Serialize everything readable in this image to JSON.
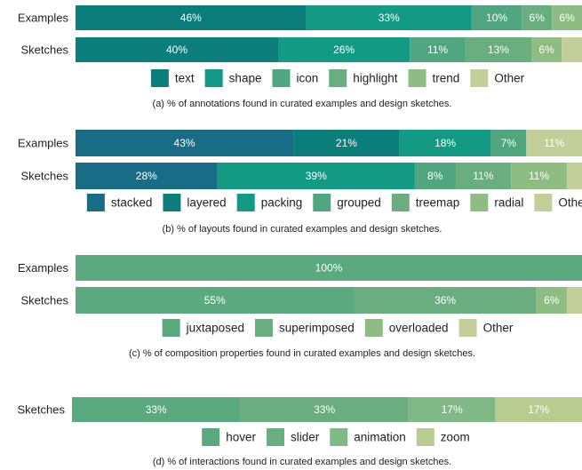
{
  "chart_data": [
    {
      "type": "bar",
      "orientation": "horizontal",
      "stacked": true,
      "title": "(a) % of annotations found in curated examples and design sketches.",
      "categories": [
        "Examples",
        "Sketches"
      ],
      "series": [
        {
          "name": "text",
          "color": "#0b7d7b",
          "values": [
            46,
            40
          ],
          "value_labels": [
            "46%",
            "40%"
          ]
        },
        {
          "name": "shape",
          "color": "#139a84",
          "values": [
            33,
            26
          ],
          "value_labels": [
            "33%",
            "26%"
          ]
        },
        {
          "name": "icon",
          "color": "#4fa67f",
          "values": [
            10,
            11
          ],
          "value_labels": [
            "10%",
            "11%"
          ]
        },
        {
          "name": "highlight",
          "color": "#6aae7f",
          "values": [
            6,
            13
          ],
          "value_labels": [
            "6%",
            "13%"
          ]
        },
        {
          "name": "trend",
          "color": "#8dbd82",
          "values": [
            6,
            6
          ],
          "value_labels": [
            "6%",
            "6%"
          ]
        },
        {
          "name": "Other",
          "color": "#c3cf98",
          "values": [
            0,
            4
          ],
          "value_labels": [
            null,
            null
          ]
        }
      ]
    },
    {
      "type": "bar",
      "orientation": "horizontal",
      "stacked": true,
      "title": "(b) % of layouts found in curated examples and design sketches.",
      "categories": [
        "Examples",
        "Sketches"
      ],
      "series": [
        {
          "name": "stacked",
          "color": "#186c86",
          "values": [
            43,
            28
          ],
          "value_labels": [
            "43%",
            "28%"
          ]
        },
        {
          "name": "layered",
          "color": "#0b7d7b",
          "values": [
            21,
            0
          ],
          "value_labels": [
            "21%",
            null
          ]
        },
        {
          "name": "packing",
          "color": "#139a84",
          "values": [
            18,
            39
          ],
          "value_labels": [
            "18%",
            "39%"
          ]
        },
        {
          "name": "grouped",
          "color": "#4fa67f",
          "values": [
            7,
            8
          ],
          "value_labels": [
            "7%",
            "8%"
          ]
        },
        {
          "name": "treemap",
          "color": "#6aae7f",
          "values": [
            0,
            11
          ],
          "value_labels": [
            null,
            "11%"
          ]
        },
        {
          "name": "radial",
          "color": "#8dbd82",
          "values": [
            0,
            11
          ],
          "value_labels": [
            null,
            "11%"
          ]
        },
        {
          "name": "Other",
          "color": "#c3cf98",
          "values": [
            11,
            3
          ],
          "value_labels": [
            "11%",
            null
          ]
        }
      ]
    },
    {
      "type": "bar",
      "orientation": "horizontal",
      "stacked": true,
      "title": "(c) % of composition properties found in curated examples and design sketches.",
      "categories": [
        "Examples",
        "Sketches"
      ],
      "series": [
        {
          "name": "juxtaposed",
          "color": "#5aa97f",
          "values": [
            100,
            55
          ],
          "value_labels": [
            "100%",
            "55%"
          ]
        },
        {
          "name": "superimposed",
          "color": "#6aae7f",
          "values": [
            0,
            36
          ],
          "value_labels": [
            null,
            "36%"
          ]
        },
        {
          "name": "overloaded",
          "color": "#8dbd82",
          "values": [
            0,
            6
          ],
          "value_labels": [
            null,
            "6%"
          ]
        },
        {
          "name": "Other",
          "color": "#c3cf98",
          "values": [
            0,
            3
          ],
          "value_labels": [
            null,
            null
          ]
        }
      ]
    },
    {
      "type": "bar",
      "orientation": "horizontal",
      "stacked": true,
      "title": "(d) % of interactions found in curated examples and design sketches.",
      "categories": [
        "Sketches"
      ],
      "series": [
        {
          "name": "hover",
          "color": "#5aa97f",
          "values": [
            33
          ],
          "value_labels": [
            "33%"
          ]
        },
        {
          "name": "slider",
          "color": "#6aae7f",
          "values": [
            33
          ],
          "value_labels": [
            "33%"
          ]
        },
        {
          "name": "animation",
          "color": "#80b985",
          "values": [
            17
          ],
          "value_labels": [
            "17%"
          ]
        },
        {
          "name": "zoom",
          "color": "#b8cc8f",
          "values": [
            17
          ],
          "value_labels": [
            "17%"
          ]
        }
      ]
    }
  ]
}
